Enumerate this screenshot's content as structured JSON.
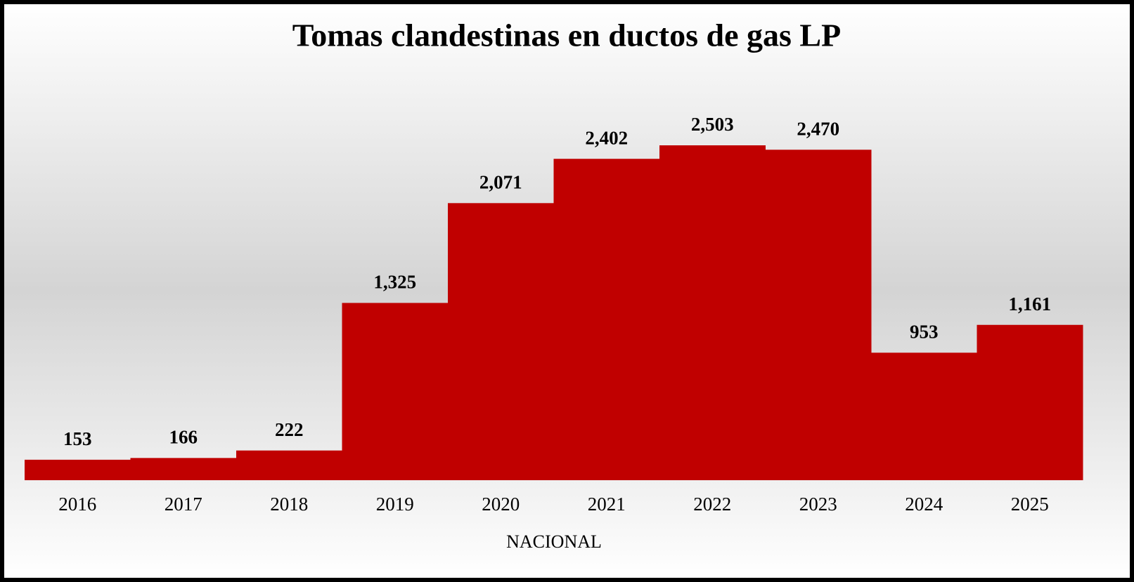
{
  "chart_data": {
    "type": "bar",
    "title": "Tomas clandestinas en ductos de gas LP",
    "x_label": "NACIONAL",
    "categories": [
      "2016",
      "2017",
      "2018",
      "2019",
      "2020",
      "2021",
      "2022",
      "2023",
      "2024",
      "2025"
    ],
    "values": [
      153,
      166,
      222,
      1325,
      2071,
      2402,
      2503,
      2470,
      953,
      1161
    ],
    "value_labels": [
      "153",
      "166",
      "222",
      "1,325",
      "2,071",
      "2,402",
      "2,503",
      "2,470",
      "953",
      "1,161"
    ],
    "color": "#c00000"
  }
}
